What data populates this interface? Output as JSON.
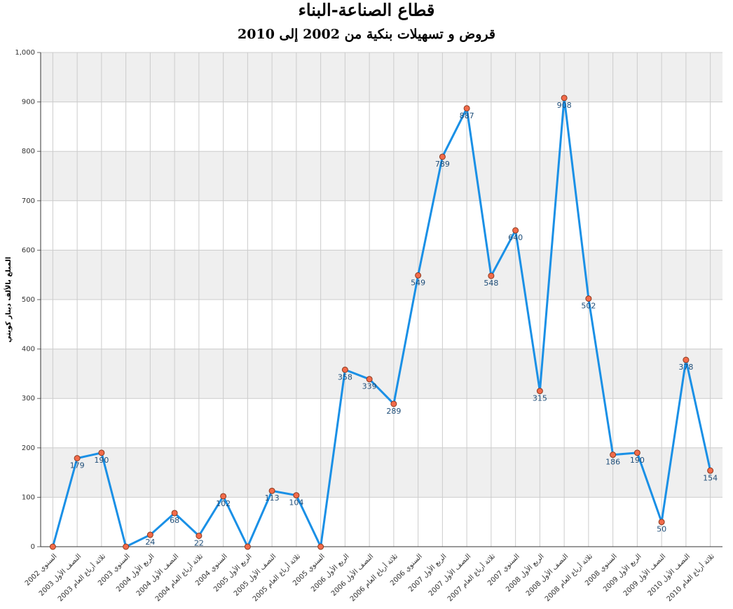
{
  "chart_data": {
    "type": "line",
    "title": "قطاع الصناعة-البناء",
    "subtitle": "قروض و تسهيلات بنكية من 2002 إلى 2010",
    "y_label": "المبلغ بالألف دينار كويتي",
    "categories": [
      "السنوي 2002",
      "النصف الأول 2003",
      "ثلاثة أرباع العام 2003",
      "السنوي 2003",
      "الربع الأول 2004",
      "النصف الأول 2004",
      "ثلاثة أرباع العام 2004",
      "السنوي 2004",
      "الربع الأول 2005",
      "النصف الأول 2005",
      "ثلاثة أرباع العام 2005",
      "السنوي 2005",
      "الربع الأول 2006",
      "النصف الأول 2006",
      "ثلاثة أرباع العام 2006",
      "السنوي 2006",
      "الربع الأول 2007",
      "النصف الأول 2007",
      "ثلاثة أرباع العام 2007",
      "السنوي 2007",
      "الربع الأول 2008",
      "النصف الأول 2008",
      "ثلاثة أرباع العام 2008",
      "السنوي 2008",
      "الربع الأول 2009",
      "النصف الأول 2009",
      "النصف الأول 2010",
      "ثلاثة أرباع العام 2010"
    ],
    "values": [
      0,
      179,
      190,
      0,
      24,
      68,
      22,
      102,
      0,
      113,
      104,
      0,
      358,
      339,
      289,
      549,
      789,
      887,
      548,
      640,
      315,
      908,
      502,
      186,
      190,
      50,
      378,
      154
    ],
    "color": "#1a90e6",
    "marker_color": "#f26b4a",
    "ylim": [
      0,
      1000
    ],
    "yticks": [
      0,
      100,
      200,
      300,
      400,
      500,
      600,
      700,
      800,
      900,
      {
        "value": 1000,
        "label": "1,000"
      }
    ],
    "grid": true,
    "band_color": "#efefef"
  }
}
